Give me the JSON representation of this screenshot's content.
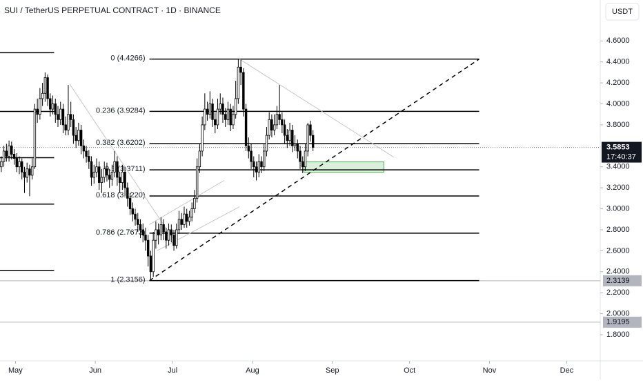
{
  "chart_data": {
    "type": "candlestick",
    "title": "SUI / TetherUS PERPETUAL CONTRACT · 1D · BINANCE",
    "currency": "USDT",
    "up_color": "#ffffff",
    "down_color": "#000000",
    "wick_color": "#000000",
    "ylim": [
      1.55,
      4.99
    ],
    "yticks": [
      {
        "value": 4.6,
        "label": "4.6000"
      },
      {
        "value": 4.4,
        "label": "4.4000"
      },
      {
        "value": 4.2,
        "label": "4.2000"
      },
      {
        "value": 4.0,
        "label": "4.0000"
      },
      {
        "value": 3.8,
        "label": "3.8000"
      },
      {
        "value": 3.4,
        "label": "3.4000"
      },
      {
        "value": 3.2,
        "label": "3.2000"
      },
      {
        "value": 3.0,
        "label": "3.0000"
      },
      {
        "value": 2.8,
        "label": "2.8000"
      },
      {
        "value": 2.6,
        "label": "2.6000"
      },
      {
        "value": 2.4,
        "label": "2.4000"
      },
      {
        "value": 2.2,
        "label": "2.2000"
      },
      {
        "value": 2.0,
        "label": "2.0000"
      },
      {
        "value": 1.8,
        "label": "1.8000"
      }
    ],
    "xlim": [
      0,
      233
    ],
    "xticks": [
      {
        "value": 6,
        "label": "May"
      },
      {
        "value": 37,
        "label": "Jun"
      },
      {
        "value": 67,
        "label": "Jul"
      },
      {
        "value": 98,
        "label": "Aug"
      },
      {
        "value": 129,
        "label": "Sep"
      },
      {
        "value": 159,
        "label": "Oct"
      },
      {
        "value": 190,
        "label": "Nov"
      },
      {
        "value": 220,
        "label": "Dec"
      }
    ],
    "candles": [
      [
        3.4,
        3.5,
        3.35,
        3.45
      ],
      [
        3.45,
        3.6,
        3.4,
        3.55
      ],
      [
        3.55,
        3.62,
        3.45,
        3.5
      ],
      [
        3.5,
        3.65,
        3.45,
        3.6
      ],
      [
        3.6,
        3.64,
        3.47,
        3.52
      ],
      [
        3.52,
        3.57,
        3.42,
        3.48
      ],
      [
        3.48,
        3.53,
        3.35,
        3.4
      ],
      [
        3.4,
        3.5,
        3.33,
        3.45
      ],
      [
        3.45,
        3.48,
        3.28,
        3.35
      ],
      [
        3.35,
        3.4,
        3.15,
        3.3
      ],
      [
        3.3,
        3.44,
        3.25,
        3.38
      ],
      [
        3.38,
        3.42,
        3.12,
        3.32
      ],
      [
        3.32,
        3.48,
        3.28,
        3.4
      ],
      [
        3.4,
        4.0,
        3.38,
        3.95
      ],
      [
        3.95,
        4.05,
        3.82,
        3.9
      ],
      [
        3.9,
        4.15,
        3.85,
        4.05
      ],
      [
        4.05,
        4.2,
        3.98,
        4.1
      ],
      [
        4.1,
        4.3,
        4.02,
        4.25
      ],
      [
        4.25,
        4.28,
        3.98,
        4.05
      ],
      [
        4.05,
        4.1,
        3.88,
        3.95
      ],
      [
        3.95,
        4.08,
        3.9,
        4.0
      ],
      [
        4.0,
        4.05,
        3.82,
        3.9
      ],
      [
        3.9,
        3.98,
        3.78,
        3.85
      ],
      [
        3.85,
        4.02,
        3.8,
        3.95
      ],
      [
        3.95,
        4.0,
        3.72,
        3.8
      ],
      [
        3.8,
        3.88,
        3.7,
        3.75
      ],
      [
        3.75,
        4.18,
        3.7,
        3.9
      ],
      [
        3.9,
        4.02,
        3.78,
        3.85
      ],
      [
        3.85,
        3.9,
        3.62,
        3.7
      ],
      [
        3.7,
        3.78,
        3.58,
        3.65
      ],
      [
        3.65,
        3.82,
        3.6,
        3.75
      ],
      [
        3.75,
        3.8,
        3.52,
        3.6
      ],
      [
        3.6,
        3.66,
        3.48,
        3.55
      ],
      [
        3.55,
        3.6,
        3.44,
        3.5
      ],
      [
        3.5,
        3.56,
        3.38,
        3.45
      ],
      [
        3.45,
        3.5,
        3.22,
        3.3
      ],
      [
        3.3,
        3.42,
        3.24,
        3.35
      ],
      [
        3.35,
        3.48,
        3.3,
        3.4
      ],
      [
        3.4,
        3.45,
        3.18,
        3.25
      ],
      [
        3.25,
        3.38,
        3.15,
        3.3
      ],
      [
        3.3,
        3.45,
        3.25,
        3.38
      ],
      [
        3.38,
        3.44,
        3.26,
        3.32
      ],
      [
        3.32,
        3.38,
        3.2,
        3.28
      ],
      [
        3.28,
        3.42,
        3.22,
        3.35
      ],
      [
        3.35,
        3.55,
        3.3,
        3.45
      ],
      [
        3.45,
        3.5,
        3.22,
        3.3
      ],
      [
        3.3,
        3.35,
        3.15,
        3.25
      ],
      [
        3.25,
        3.42,
        3.18,
        3.35
      ],
      [
        3.35,
        3.4,
        3.12,
        3.2
      ],
      [
        3.2,
        3.25,
        3.02,
        3.1
      ],
      [
        3.1,
        3.15,
        2.94,
        3.0
      ],
      [
        3.0,
        3.06,
        2.88,
        2.95
      ],
      [
        2.95,
        3.0,
        2.84,
        2.9
      ],
      [
        2.9,
        2.96,
        2.78,
        2.85
      ],
      [
        2.85,
        2.9,
        2.72,
        2.8
      ],
      [
        2.8,
        2.86,
        2.68,
        2.75
      ],
      [
        2.75,
        2.82,
        2.6,
        2.7
      ],
      [
        2.7,
        2.75,
        2.45,
        2.55
      ],
      [
        2.55,
        2.6,
        2.32,
        2.4
      ],
      [
        2.4,
        2.78,
        2.35,
        2.7
      ],
      [
        2.7,
        2.88,
        2.62,
        2.8
      ],
      [
        2.8,
        2.86,
        2.66,
        2.75
      ],
      [
        2.75,
        2.92,
        2.7,
        2.85
      ],
      [
        2.85,
        2.9,
        2.7,
        2.78
      ],
      [
        2.78,
        2.82,
        2.62,
        2.7
      ],
      [
        2.7,
        2.86,
        2.65,
        2.8
      ],
      [
        2.8,
        2.85,
        2.68,
        2.75
      ],
      [
        2.75,
        2.8,
        2.6,
        2.65
      ],
      [
        2.65,
        2.86,
        2.62,
        2.8
      ],
      [
        2.8,
        2.98,
        2.76,
        2.9
      ],
      [
        2.9,
        2.96,
        2.8,
        2.85
      ],
      [
        2.85,
        3.02,
        2.82,
        2.95
      ],
      [
        2.95,
        3.0,
        2.82,
        2.88
      ],
      [
        2.88,
        2.98,
        2.84,
        2.92
      ],
      [
        2.92,
        3.06,
        2.88,
        3.0
      ],
      [
        3.0,
        3.18,
        2.96,
        3.1
      ],
      [
        3.1,
        3.48,
        3.06,
        3.4
      ],
      [
        3.4,
        3.62,
        3.34,
        3.55
      ],
      [
        3.55,
        3.88,
        3.5,
        3.8
      ],
      [
        3.8,
        4.1,
        3.75,
        3.95
      ],
      [
        3.95,
        4.02,
        3.84,
        3.9
      ],
      [
        3.9,
        4.12,
        3.86,
        4.0
      ],
      [
        4.0,
        4.05,
        3.78,
        3.85
      ],
      [
        3.85,
        3.92,
        3.72,
        3.8
      ],
      [
        3.8,
        4.05,
        3.76,
        3.95
      ],
      [
        3.95,
        4.1,
        3.9,
        4.0
      ],
      [
        4.0,
        4.06,
        3.82,
        3.9
      ],
      [
        3.9,
        3.96,
        3.78,
        3.85
      ],
      [
        3.85,
        4.02,
        3.8,
        3.95
      ],
      [
        3.95,
        4.0,
        3.74,
        3.8
      ],
      [
        3.8,
        3.98,
        3.76,
        3.9
      ],
      [
        3.9,
        4.22,
        3.86,
        4.05
      ],
      [
        4.05,
        4.43,
        4.0,
        4.35
      ],
      [
        4.35,
        4.42,
        4.18,
        4.3
      ],
      [
        4.3,
        4.34,
        3.88,
        3.95
      ],
      [
        3.95,
        4.0,
        3.55,
        3.6
      ],
      [
        3.6,
        3.68,
        3.48,
        3.55
      ],
      [
        3.55,
        3.62,
        3.38,
        3.45
      ],
      [
        3.45,
        3.5,
        3.3,
        3.4
      ],
      [
        3.4,
        3.45,
        3.27,
        3.35
      ],
      [
        3.35,
        3.52,
        3.3,
        3.45
      ],
      [
        3.45,
        3.5,
        3.34,
        3.4
      ],
      [
        3.4,
        3.62,
        3.36,
        3.55
      ],
      [
        3.55,
        3.78,
        3.5,
        3.7
      ],
      [
        3.7,
        3.92,
        3.66,
        3.85
      ],
      [
        3.85,
        3.9,
        3.68,
        3.75
      ],
      [
        3.75,
        3.9,
        3.7,
        3.8
      ],
      [
        3.8,
        3.98,
        3.76,
        3.9
      ],
      [
        3.9,
        4.18,
        3.8,
        3.85
      ],
      [
        3.85,
        3.92,
        3.72,
        3.8
      ],
      [
        3.8,
        3.85,
        3.62,
        3.7
      ],
      [
        3.7,
        3.76,
        3.58,
        3.65
      ],
      [
        3.65,
        3.82,
        3.6,
        3.75
      ],
      [
        3.75,
        3.8,
        3.54,
        3.6
      ],
      [
        3.6,
        3.7,
        3.55,
        3.62
      ],
      [
        3.62,
        3.66,
        3.48,
        3.55
      ],
      [
        3.55,
        3.6,
        3.38,
        3.45
      ],
      [
        3.45,
        3.5,
        3.34,
        3.4
      ],
      [
        3.4,
        3.62,
        3.36,
        3.55
      ],
      [
        3.55,
        3.82,
        3.5,
        3.8
      ],
      [
        3.8,
        3.84,
        3.64,
        3.7
      ],
      [
        3.7,
        3.75,
        3.55,
        3.5853
      ]
    ],
    "fib_levels": [
      {
        "label": "0 (4.4266)",
        "value": 4.4266
      },
      {
        "label": "0.236 (3.9284)",
        "value": 3.9284
      },
      {
        "label": "0.382 (3.6202)",
        "value": 3.6202
      },
      {
        "label": "0.5 (3.3711)",
        "value": 3.3711
      },
      {
        "label": "0.618 (3.1220)",
        "value": 3.122
      },
      {
        "label": "0.786 (2.7673)",
        "value": 2.7673
      },
      {
        "label": "1 (2.3156)",
        "value": 2.3156
      }
    ],
    "fib_x": [
      58,
      186
    ],
    "old_fib_levels": [
      4.488,
      3.928,
      3.487,
      3.045,
      2.413
    ],
    "old_fib_x": [
      0,
      21
    ],
    "trendlines": [
      {
        "style": "dashed",
        "points": [
          [
            58,
            2.3156
          ],
          [
            186,
            4.4266
          ]
        ]
      },
      {
        "style": "thin",
        "points": [
          [
            93,
            4.4266
          ],
          [
            153,
            3.49
          ]
        ]
      },
      {
        "style": "thin",
        "points": [
          [
            27,
            4.19
          ],
          [
            67,
            2.72
          ]
        ]
      },
      {
        "style": "thin",
        "points": [
          [
            58,
            2.85
          ],
          [
            87,
            3.27
          ]
        ]
      },
      {
        "style": "thin",
        "points": [
          [
            61,
            2.6
          ],
          [
            93,
            3.02
          ]
        ]
      }
    ],
    "zone": {
      "x": [
        118,
        149
      ],
      "y": [
        3.348,
        3.447
      ]
    },
    "last_price": 3.5853,
    "countdown": "17:40:37",
    "price_lines": [
      2.3139,
      1.9195
    ]
  }
}
